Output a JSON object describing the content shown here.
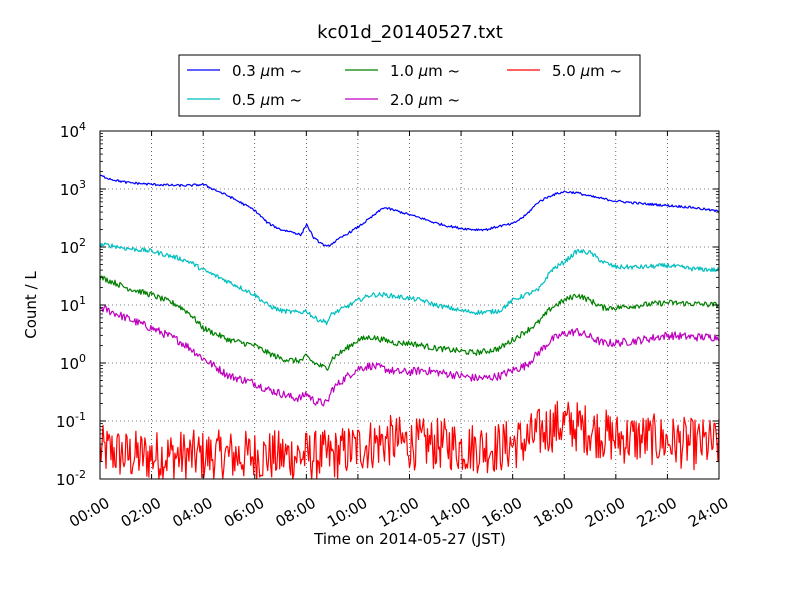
{
  "chart_data": {
    "type": "line",
    "title": "kc01d_20140527.txt",
    "xlabel": "Time on 2014-05-27 (JST)",
    "ylabel": "Count / L",
    "xlim_hours": [
      0,
      24
    ],
    "ylim": [
      0.01,
      10000
    ],
    "yscale": "log",
    "grid": true,
    "legend_position": "top-center",
    "x_tick_labels": [
      "00:00",
      "02:00",
      "04:00",
      "06:00",
      "08:00",
      "10:00",
      "12:00",
      "14:00",
      "16:00",
      "18:00",
      "20:00",
      "22:00",
      "24:00"
    ],
    "y_tick_labels": [
      {
        "base": "10",
        "exp": "-2"
      },
      {
        "base": "10",
        "exp": "-1"
      },
      {
        "base": "10",
        "exp": "0"
      },
      {
        "base": "10",
        "exp": "1"
      },
      {
        "base": "10",
        "exp": "2"
      },
      {
        "base": "10",
        "exp": "3"
      },
      {
        "base": "10",
        "exp": "4"
      }
    ],
    "x_hours": [
      0,
      0.5,
      1,
      2,
      3,
      3.5,
      4,
      5,
      6,
      6.5,
      7,
      7.5,
      7.8,
      8,
      8.3,
      8.8,
      9,
      9.5,
      10,
      10.5,
      11,
      11.5,
      12,
      12.5,
      13,
      13.5,
      14,
      14.5,
      15,
      15.5,
      16,
      16.5,
      17,
      17.5,
      18,
      18.5,
      19,
      19.5,
      20,
      21,
      22,
      23,
      24
    ],
    "series": [
      {
        "name": "0.3 μm ~",
        "color": "#0000ff",
        "noise": 0.02,
        "values": [
          1700,
          1450,
          1300,
          1200,
          1150,
          1150,
          1200,
          750,
          430,
          260,
          200,
          180,
          160,
          250,
          140,
          100,
          115,
          160,
          220,
          320,
          480,
          420,
          360,
          310,
          260,
          230,
          210,
          200,
          200,
          230,
          250,
          350,
          600,
          780,
          900,
          860,
          750,
          680,
          620,
          560,
          520,
          480,
          410
        ]
      },
      {
        "name": "0.5 μm ~",
        "color": "#00bfbf",
        "noise": 0.04,
        "values": [
          110,
          105,
          95,
          85,
          65,
          55,
          40,
          25,
          15,
          10,
          8,
          7.5,
          7.5,
          8,
          6,
          5,
          7,
          9,
          12,
          15,
          15,
          14,
          13,
          12,
          10,
          9,
          8,
          7.5,
          7.5,
          8,
          12,
          15,
          18,
          40,
          55,
          85,
          80,
          55,
          45,
          45,
          48,
          42,
          40
        ]
      },
      {
        "name": "1.0 μm ~",
        "color": "#008000",
        "noise": 0.05,
        "values": [
          30,
          25,
          20,
          15,
          10,
          7,
          4,
          2.5,
          2,
          1.5,
          1.2,
          1.1,
          1.1,
          1.3,
          1,
          0.8,
          1.2,
          1.7,
          2.5,
          2.8,
          2.5,
          2.2,
          2.2,
          2,
          1.8,
          1.7,
          1.6,
          1.5,
          1.6,
          1.8,
          2.5,
          3.5,
          5,
          9,
          12,
          15,
          12,
          9,
          9,
          10,
          11,
          10.5,
          10
        ]
      },
      {
        "name": "2.0 μm ~",
        "color": "#bf00bf",
        "noise": 0.07,
        "values": [
          9,
          7.5,
          6,
          4,
          2.5,
          1.8,
          1.2,
          0.6,
          0.45,
          0.35,
          0.3,
          0.25,
          0.25,
          0.3,
          0.22,
          0.2,
          0.35,
          0.55,
          0.8,
          0.9,
          0.8,
          0.7,
          0.7,
          0.75,
          0.7,
          0.65,
          0.6,
          0.55,
          0.55,
          0.6,
          0.75,
          0.9,
          1.5,
          2.5,
          3.2,
          3.5,
          2.8,
          2.2,
          2.2,
          2.5,
          3,
          2.8,
          2.8
        ]
      },
      {
        "name": "5.0 μm ~",
        "color": "#ff0000",
        "noise": 0.45,
        "values": [
          0.03,
          0.03,
          0.025,
          0.025,
          0.025,
          0.025,
          0.025,
          0.025,
          0.025,
          0.025,
          0.025,
          0.025,
          0.025,
          0.025,
          0.025,
          0.025,
          0.025,
          0.03,
          0.035,
          0.04,
          0.045,
          0.045,
          0.04,
          0.04,
          0.04,
          0.04,
          0.035,
          0.035,
          0.035,
          0.035,
          0.04,
          0.045,
          0.06,
          0.08,
          0.09,
          0.08,
          0.07,
          0.06,
          0.05,
          0.05,
          0.045,
          0.04,
          0.04
        ]
      }
    ],
    "legend": [
      {
        "label": "0.3 ",
        "greek": "μ",
        "unit": "m  ~",
        "color": "#0000ff"
      },
      {
        "label": "1.0 ",
        "greek": "μ",
        "unit": "m  ~",
        "color": "#008000"
      },
      {
        "label": "5.0 ",
        "greek": "μ",
        "unit": "m  ~",
        "color": "#ff0000"
      },
      {
        "label": "0.5 ",
        "greek": "μ",
        "unit": "m  ~",
        "color": "#00bfbf"
      },
      {
        "label": "2.0 ",
        "greek": "μ",
        "unit": "m  ~",
        "color": "#bf00bf"
      }
    ]
  }
}
